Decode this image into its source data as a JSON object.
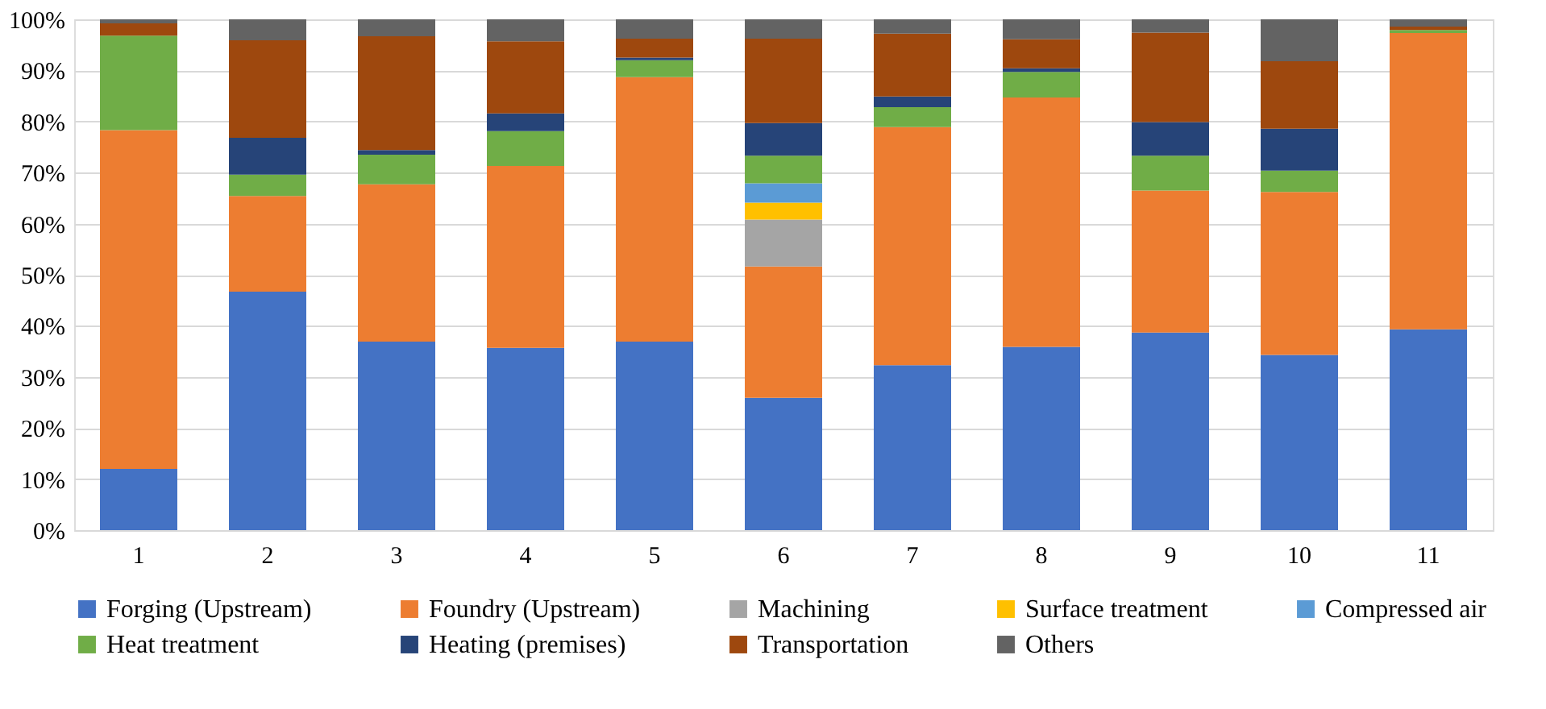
{
  "chart_data": {
    "type": "bar",
    "stacked": true,
    "categories": [
      "1",
      "2",
      "3",
      "4",
      "5",
      "6",
      "7",
      "8",
      "9",
      "10",
      "11"
    ],
    "ylim": [
      0,
      100
    ],
    "yticks": [
      {
        "value": 0,
        "label": "0%"
      },
      {
        "value": 10,
        "label": "10%"
      },
      {
        "value": 20,
        "label": "20%"
      },
      {
        "value": 30,
        "label": "30%"
      },
      {
        "value": 40,
        "label": "40%"
      },
      {
        "value": 50,
        "label": "50%"
      },
      {
        "value": 60,
        "label": "60%"
      },
      {
        "value": 70,
        "label": "70%"
      },
      {
        "value": 80,
        "label": "80%"
      },
      {
        "value": 90,
        "label": "90%"
      },
      {
        "value": 100,
        "label": "100%"
      }
    ],
    "grid": "y",
    "legend": "bottom",
    "series": [
      {
        "name": "Forging (Upstream)",
        "color": "#4472c4",
        "values": [
          12.0,
          46.7,
          36.9,
          35.7,
          36.9,
          25.9,
          32.3,
          35.9,
          38.7,
          34.3,
          39.3
        ]
      },
      {
        "name": "Foundry (Upstream)",
        "color": "#ed7d31",
        "values": [
          66.3,
          18.7,
          30.8,
          35.6,
          51.8,
          25.7,
          46.6,
          48.8,
          27.8,
          31.9,
          58.0
        ]
      },
      {
        "name": "Machining",
        "color": "#a5a5a5",
        "values": [
          0,
          0,
          0,
          0,
          0,
          9.2,
          0,
          0,
          0,
          0,
          0
        ]
      },
      {
        "name": "Surface treatment",
        "color": "#ffc000",
        "values": [
          0,
          0,
          0,
          0,
          0,
          3.3,
          0,
          0,
          0,
          0,
          0
        ]
      },
      {
        "name": "Compressed air",
        "color": "#5b9bd5",
        "values": [
          0,
          0,
          0,
          0,
          0,
          3.8,
          0,
          0,
          0,
          0,
          0
        ]
      },
      {
        "name": "Heat treatment",
        "color": "#70ad47",
        "values": [
          18.5,
          4.2,
          5.8,
          6.8,
          3.3,
          5.4,
          3.9,
          5.0,
          6.8,
          4.2,
          0.6
        ]
      },
      {
        "name": "Heating (premises)",
        "color": "#264478",
        "values": [
          0,
          7.2,
          0.9,
          3.5,
          0.5,
          6.4,
          2.1,
          0.7,
          6.6,
          8.2,
          0
        ]
      },
      {
        "name": "Transportation",
        "color": "#9e480e",
        "values": [
          2.4,
          19.1,
          22.3,
          14.1,
          3.7,
          16.5,
          12.3,
          5.7,
          17.5,
          13.2,
          0.7
        ]
      },
      {
        "name": "Others",
        "color": "#636363",
        "values": [
          0.8,
          4.1,
          3.3,
          4.3,
          3.8,
          3.8,
          2.8,
          3.9,
          2.6,
          8.2,
          1.4
        ]
      }
    ]
  }
}
